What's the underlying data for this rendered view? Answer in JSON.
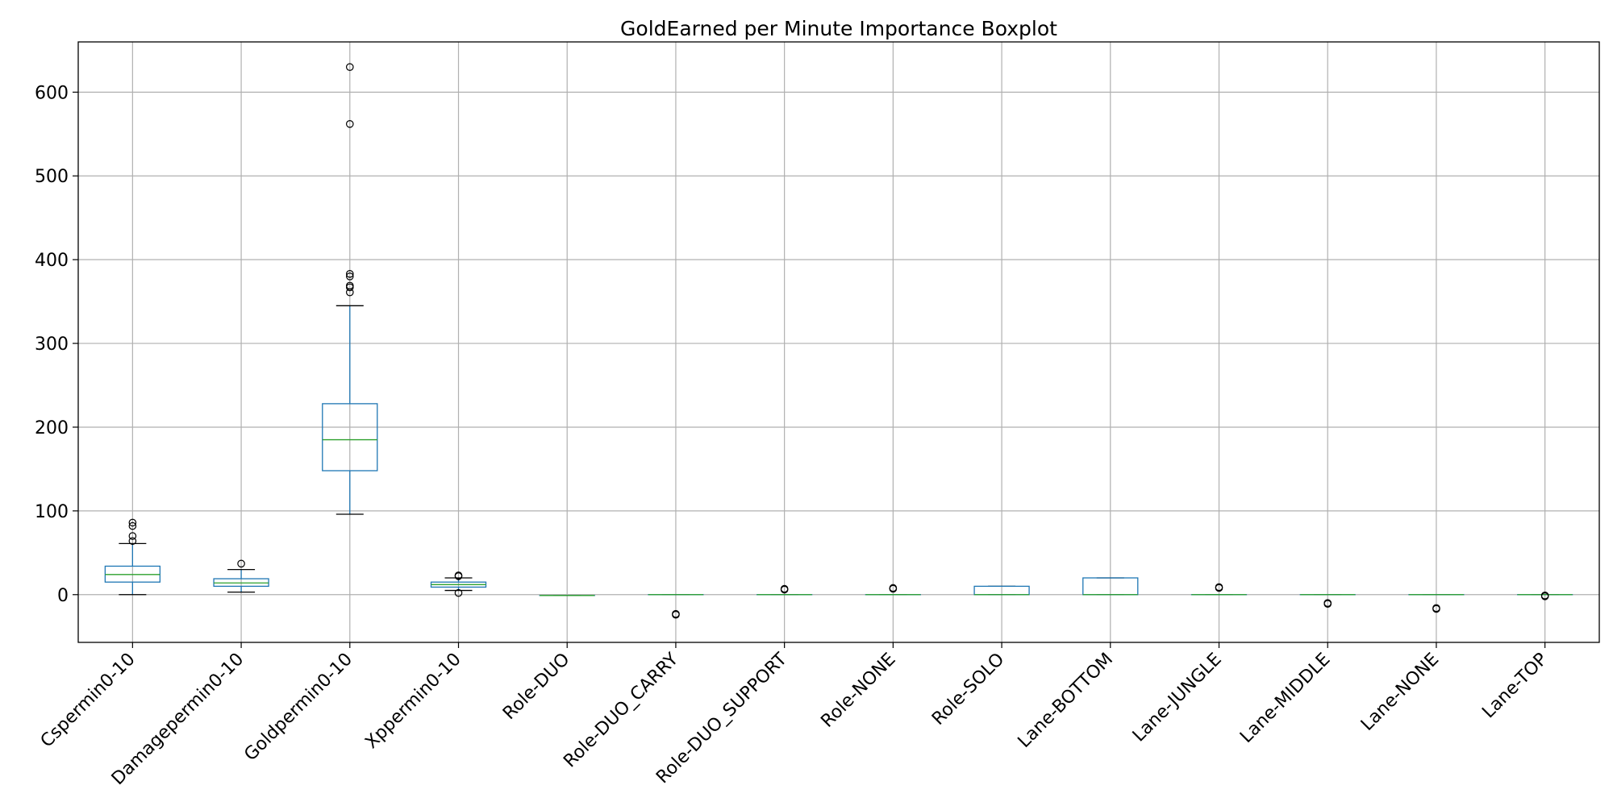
{
  "chart_data": {
    "type": "boxplot",
    "title": "GoldEarned per Minute Importance Boxplot",
    "xlabel": "",
    "ylabel": "",
    "ylim": [
      -57,
      660
    ],
    "yticks": [
      0,
      100,
      200,
      300,
      400,
      500,
      600
    ],
    "grid": true,
    "legend": "none",
    "colors": {
      "box": "#1f77b4",
      "median": "#2ca02c",
      "whisker": "#1f77b4",
      "cap": "#000000",
      "flier": "#000000",
      "grid": "#b0b0b0",
      "axes": "#000000"
    },
    "categories": [
      "Cspermin0-10",
      "Damagepermin0-10",
      "Goldpermin0-10",
      "Xppermin0-10",
      "Role-DUO",
      "Role-DUO_CARRY",
      "Role-DUO_SUPPORT",
      "Role-NONE",
      "Role-SOLO",
      "Lane-BOTTOM",
      "Lane-JUNGLE",
      "Lane-MIDDLE",
      "Lane-NONE",
      "Lane-TOP"
    ],
    "boxes": [
      {
        "whisker_low": 0,
        "q1": 15,
        "median": 24,
        "q3": 34,
        "whisker_high": 61,
        "fliers": [
          64,
          70,
          82,
          86
        ]
      },
      {
        "whisker_low": 3,
        "q1": 10,
        "median": 14,
        "q3": 19,
        "whisker_high": 30,
        "fliers": [
          37
        ]
      },
      {
        "whisker_low": 96,
        "q1": 148,
        "median": 185,
        "q3": 228,
        "whisker_high": 345,
        "fliers": [
          361,
          367,
          369,
          380,
          383,
          562,
          630
        ]
      },
      {
        "whisker_low": 5,
        "q1": 9,
        "median": 12,
        "q3": 15,
        "whisker_high": 20,
        "fliers": [
          2,
          22,
          23
        ]
      },
      {
        "whisker_low": -1,
        "q1": -1,
        "median": -1,
        "q3": -1,
        "whisker_high": -1,
        "fliers": []
      },
      {
        "whisker_low": 0,
        "q1": 0,
        "median": 0,
        "q3": 0,
        "whisker_high": 0,
        "fliers": [
          -23,
          -24
        ]
      },
      {
        "whisker_low": 0,
        "q1": 0,
        "median": 0,
        "q3": 0,
        "whisker_high": 0,
        "fliers": [
          6,
          7
        ]
      },
      {
        "whisker_low": 0,
        "q1": 0,
        "median": 0,
        "q3": 0,
        "whisker_high": 0,
        "fliers": [
          7,
          8
        ]
      },
      {
        "whisker_low": 0,
        "q1": 0,
        "median": 0,
        "q3": 10,
        "whisker_high": 10,
        "fliers": []
      },
      {
        "whisker_low": 0,
        "q1": 0,
        "median": 0,
        "q3": 20,
        "whisker_high": 20,
        "fliers": []
      },
      {
        "whisker_low": 0,
        "q1": 0,
        "median": 0,
        "q3": 0,
        "whisker_high": 0,
        "fliers": [
          8,
          9
        ]
      },
      {
        "whisker_low": 0,
        "q1": 0,
        "median": 0,
        "q3": 0,
        "whisker_high": 0,
        "fliers": [
          -10,
          -11
        ]
      },
      {
        "whisker_low": 0,
        "q1": 0,
        "median": 0,
        "q3": 0,
        "whisker_high": 0,
        "fliers": [
          -16,
          -17
        ]
      },
      {
        "whisker_low": 0,
        "q1": 0,
        "median": 0,
        "q3": 0,
        "whisker_high": 0,
        "fliers": [
          -1,
          -2
        ]
      }
    ]
  }
}
